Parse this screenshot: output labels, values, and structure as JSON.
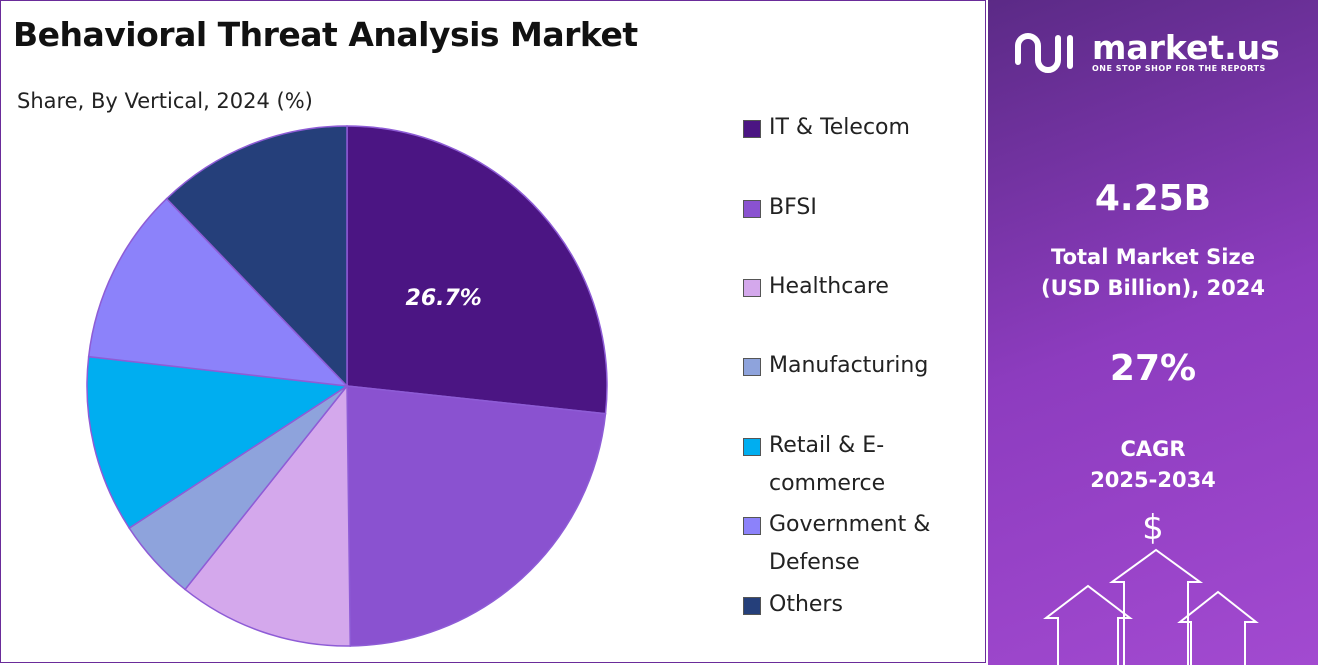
{
  "chart_data": {
    "type": "pie",
    "title": "Behavioral Threat Analysis Market",
    "subtitle": "Share, By Vertical, 2024 (%)",
    "categories": [
      "IT & Telecom",
      "BFSI",
      "Healthcare",
      "Manufacturing",
      "Retail & E-commerce",
      "Government & Defense",
      "Others"
    ],
    "values": [
      26.7,
      23.1,
      10.9,
      5.1,
      11.0,
      11.0,
      12.2
    ],
    "value_labels": [
      "26.7%",
      null,
      null,
      null,
      null,
      null,
      null
    ],
    "colors": [
      "#4b1583",
      "#8a52d0",
      "#d4a8ec",
      "#8ea3dc",
      "#00aef0",
      "#8c82fa",
      "#253f7a"
    ]
  },
  "sidebar": {
    "brand": "market.us",
    "tagline": "ONE STOP SHOP FOR THE REPORTS",
    "market_size": "4.25B",
    "market_size_label": "Total Market Size (USD Billion), 2024",
    "cagr": "27%",
    "cagr_label": "CAGR 2025-2034",
    "currency_symbol": "$"
  }
}
